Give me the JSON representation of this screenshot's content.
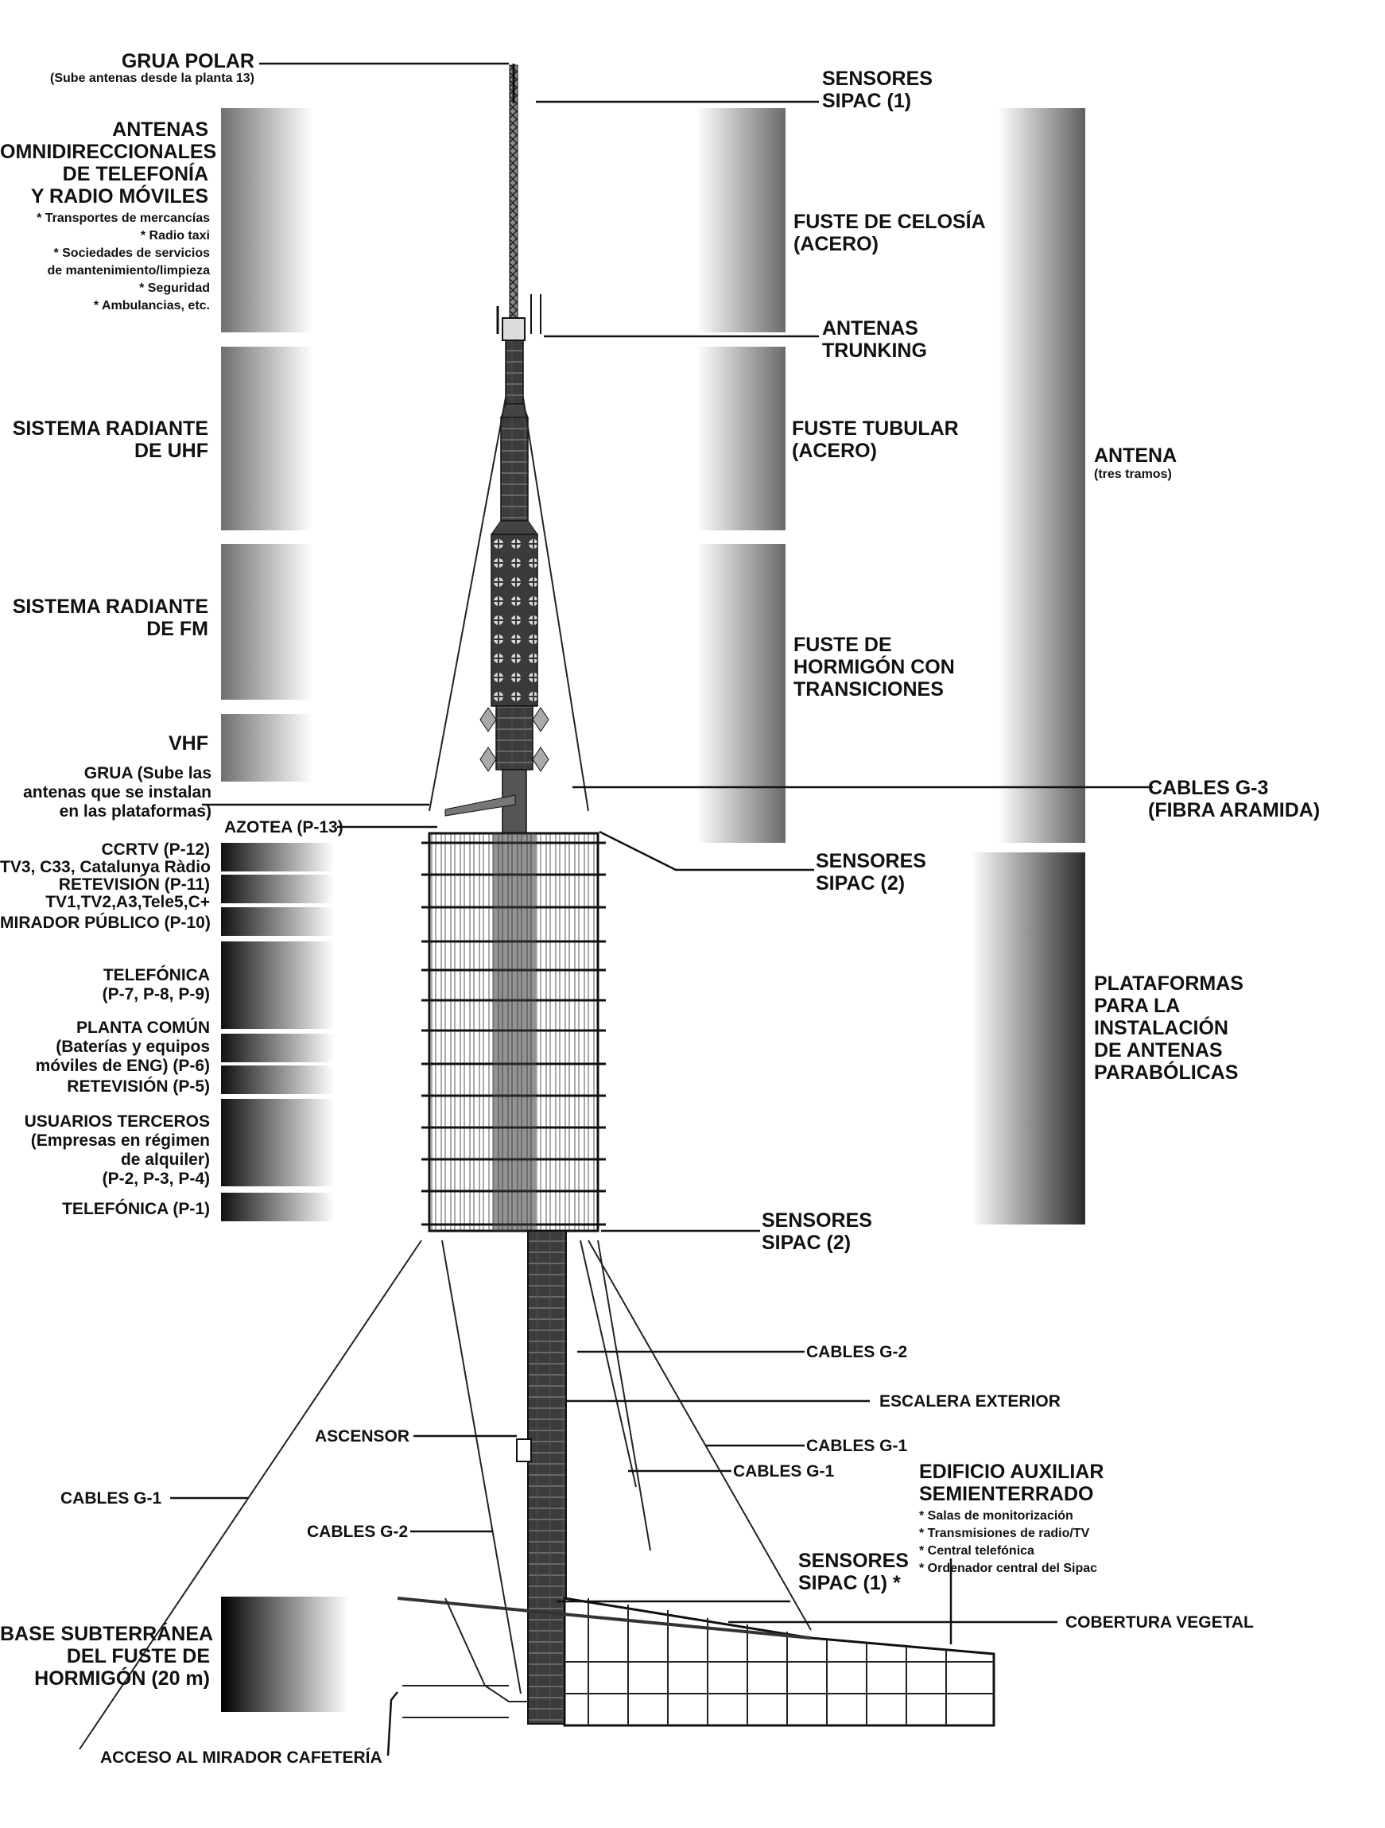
{
  "labels": {
    "grua_polar_title": "GRUA POLAR",
    "grua_polar_sub": "(Sube antenas desde la planta 13)",
    "antenas_omni_1": "ANTENAS",
    "antenas_omni_2": "OMNIDIRECCIONALES",
    "antenas_omni_3": "DE TELEFONÍA",
    "antenas_omni_4": "Y RADIO MÓVILES",
    "omni_item_1": "* Transportes de mercancías",
    "omni_item_2": "* Radio taxi",
    "omni_item_3": "* Sociedades de servicios",
    "omni_item_4": "de mantenimiento/limpieza",
    "omni_item_5": "* Seguridad",
    "omni_item_6": "* Ambulancias, etc.",
    "uhf_1": "SISTEMA RADIANTE",
    "uhf_2": "DE UHF",
    "fm_1": "SISTEMA RADIANTE",
    "fm_2": "DE FM",
    "vhf": "VHF",
    "grua_1": "GRUA  (Sube las",
    "grua_2": "antenas que se instalan",
    "grua_3": "en las plataformas)",
    "azotea": "AZOTEA (P-13)",
    "p12_1": "CCRTV (P-12)",
    "p12_2": "TV3, C33, Catalunya Ràdio",
    "p11_1": "RETEVISIÓN (P-11)",
    "p11_2": "TV1,TV2,A3,Tele5,C+",
    "p10": "MIRADOR PÚBLICO (P-10)",
    "tel_1": "TELEFÓNICA",
    "tel_2": "(P-7, P-8, P-9)",
    "pc_1": "PLANTA COMÚN",
    "pc_2": "(Baterías y equipos",
    "pc_3": "móviles de ENG) (P-6)",
    "p5": "RETEVISIÓN (P-5)",
    "ut_1": "USUARIOS TERCEROS",
    "ut_2": "(Empresas en régimen",
    "ut_3": "de alquiler)",
    "ut_4": "(P-2, P-3, P-4)",
    "p1": "TELEFÓNICA (P-1)",
    "sipac1_top_1": "SENSORES",
    "sipac1_top_2": "SIPAC (1)",
    "celosia_1": "FUSTE DE CELOSÍA",
    "celosia_2": "(ACERO)",
    "trunking_1": "ANTENAS",
    "trunking_2": "TRUNKING",
    "tubular_1": "FUSTE TUBULAR",
    "tubular_2": "(ACERO)",
    "hormigon_1": "FUSTE DE",
    "hormigon_2": "HORMIGÓN CON",
    "hormigon_3": "TRANSICIONES",
    "antena_1": "ANTENA",
    "antena_2": "(tres tramos)",
    "g3_1": "CABLES G-3",
    "g3_2": "(FIBRA ARAMIDA)",
    "sipac2a_1": "SENSORES",
    "sipac2a_2": "SIPAC (2)",
    "plat_1": "PLATAFORMAS",
    "plat_2": "PARA LA",
    "plat_3": "INSTALACIÓN",
    "plat_4": "DE ANTENAS",
    "plat_5": "PARABÓLICAS",
    "sipac2b_1": "SENSORES",
    "sipac2b_2": "SIPAC (2)",
    "g2_right": "CABLES G-2",
    "escalera": "ESCALERA EXTERIOR",
    "ascensor": "ASCENSOR",
    "g1_right": "CABLES G-1",
    "g1_mid": "CABLES G-1",
    "g1_left": "CABLES G-1",
    "g2_left": "CABLES G-2",
    "edif_1": "EDIFICIO AUXILIAR",
    "edif_2": "SEMIENTERRADO",
    "edif_item_1": "* Salas de monitorización",
    "edif_item_2": "* Transmisiones de radio/TV",
    "edif_item_3": "* Central telefónica",
    "edif_item_4": "* Ordenador central del Sipac",
    "sipac1_bot_1": "SENSORES",
    "sipac1_bot_2": "SIPAC (1) *",
    "cobertura": "COBERTURA VEGETAL",
    "base_1": "BASE SUBTERRÁNEA",
    "base_2": "DEL FUSTE DE",
    "base_3": "HORMIGÓN (20 m)",
    "acceso": "ACCESO AL MIRADOR CAFETERÍA"
  }
}
